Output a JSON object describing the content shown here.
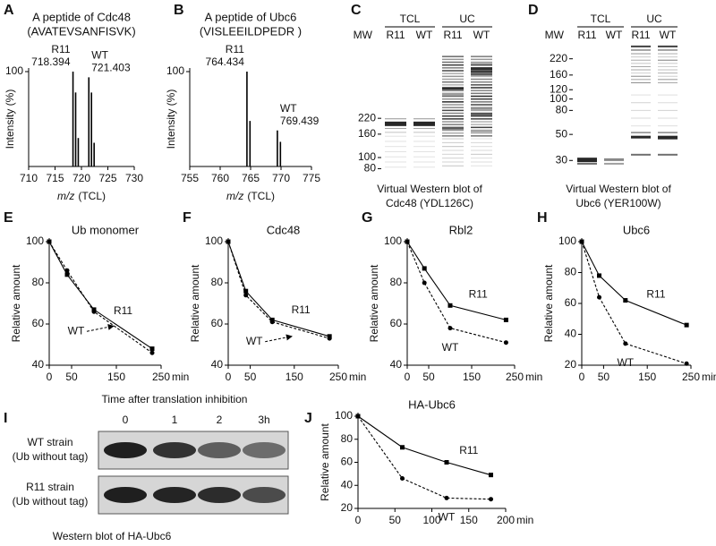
{
  "chart_data": [
    {
      "label": "A",
      "type": "spectrum",
      "title": "A peptide of Cdc48",
      "subtitle": "(AVATEVSANFISVK)",
      "xlabel": "m/z",
      "xunit": "(TCL)",
      "ylabel": "Intensity (%)",
      "xlim": [
        710,
        730
      ],
      "xticks": [
        710,
        715,
        720,
        725,
        730
      ],
      "ylim": [
        0,
        100
      ],
      "yticks": [
        100
      ],
      "series": [
        {
          "name": "R11",
          "peak_label": 718.394,
          "color": "#000000",
          "x": [
            718.4,
            718.9,
            719.4
          ],
          "values": [
            100,
            78,
            30
          ]
        },
        {
          "name": "WT",
          "peak_label": 721.403,
          "color": "#000000",
          "x": [
            721.4,
            721.9,
            722.4
          ],
          "values": [
            94,
            78,
            25
          ]
        }
      ]
    },
    {
      "label": "B",
      "type": "spectrum",
      "title": "A peptide of Ubc6",
      "subtitle": "(VISLEEILDPEDR )",
      "xlabel": "m/z",
      "xunit": "(TCL)",
      "ylabel": "Intensity (%)",
      "xlim": [
        755,
        775
      ],
      "xticks": [
        755,
        760,
        765,
        770,
        775
      ],
      "ylim": [
        0,
        100
      ],
      "yticks": [
        100
      ],
      "series": [
        {
          "name": "R11",
          "peak_label": 764.434,
          "color": "#000000",
          "x": [
            764.4,
            764.9
          ],
          "values": [
            100,
            48
          ]
        },
        {
          "name": "WT",
          "peak_label": 769.439,
          "color": "#000000",
          "x": [
            769.4,
            769.9
          ],
          "values": [
            38,
            26
          ]
        }
      ]
    },
    {
      "label": "C",
      "type": "gel",
      "groups": [
        "TCL",
        "UC"
      ],
      "lanes": [
        "R11",
        "WT",
        "R11",
        "WT"
      ],
      "ylabel": "MW",
      "log": true,
      "ylim": [
        75,
        1000
      ],
      "yticks": [
        220,
        160,
        100,
        80
      ],
      "caption": [
        "Virtual Western blot of",
        "Cdc48 (YDL126C)"
      ]
    },
    {
      "label": "D",
      "type": "gel",
      "groups": [
        "TCL",
        "UC"
      ],
      "lanes": [
        "R11",
        "WT",
        "R11",
        "WT"
      ],
      "ylabel": "MW",
      "log": true,
      "ylim": [
        24,
        300
      ],
      "yticks": [
        220,
        160,
        120,
        100,
        80,
        50,
        30
      ],
      "caption": [
        "Virtual Western blot of",
        "Ubc6 (YER100W)"
      ]
    },
    {
      "label": "E",
      "type": "line",
      "title": "Ub monomer",
      "ylabel": "Relative amount",
      "xunit": "min",
      "xlim": [
        0,
        250
      ],
      "xticks": [
        0,
        50,
        150,
        250
      ],
      "ylim": [
        40,
        100
      ],
      "yticks": [
        40,
        60,
        80,
        100
      ],
      "x": [
        0,
        40,
        100,
        230
      ],
      "series": [
        {
          "name": "R11",
          "color": "#000000",
          "marker": "square",
          "dashed": false,
          "values": [
            100,
            84,
            67,
            48
          ]
        },
        {
          "name": "WT",
          "color": "#000000",
          "marker": "circle",
          "dashed": true,
          "label_arrow": true,
          "values": [
            100,
            86,
            66,
            46
          ]
        }
      ]
    },
    {
      "label": "F",
      "type": "line",
      "title": "Cdc48",
      "ylabel": "Relative amount",
      "xunit": "min",
      "xlim": [
        0,
        250
      ],
      "xticks": [
        0,
        50,
        150,
        250
      ],
      "ylim": [
        40,
        100
      ],
      "yticks": [
        40,
        60,
        80,
        100
      ],
      "x": [
        0,
        40,
        100,
        230
      ],
      "series": [
        {
          "name": "R11",
          "color": "#000000",
          "marker": "square",
          "dashed": false,
          "values": [
            100,
            76,
            62,
            54
          ]
        },
        {
          "name": "WT",
          "color": "#000000",
          "marker": "circle",
          "dashed": true,
          "label_arrow": true,
          "values": [
            100,
            74,
            61,
            53
          ]
        }
      ]
    },
    {
      "label": "G",
      "type": "line",
      "title": "Rbl2",
      "ylabel": "Relative amount",
      "xunit": "min",
      "xlim": [
        0,
        250
      ],
      "xticks": [
        0,
        50,
        150,
        250
      ],
      "ylim": [
        40,
        100
      ],
      "yticks": [
        40,
        60,
        80,
        100
      ],
      "x": [
        0,
        40,
        100,
        230
      ],
      "series": [
        {
          "name": "R11",
          "color": "#000000",
          "marker": "square",
          "dashed": false,
          "values": [
            100,
            87,
            69,
            62
          ]
        },
        {
          "name": "WT",
          "color": "#000000",
          "marker": "circle",
          "dashed": true,
          "values": [
            100,
            80,
            58,
            51
          ]
        }
      ]
    },
    {
      "label": "H",
      "type": "line",
      "title": "Ubc6",
      "ylabel": "Relative amount",
      "xunit": "min",
      "xlim": [
        0,
        250
      ],
      "xticks": [
        0,
        50,
        150,
        250
      ],
      "ylim": [
        20,
        100
      ],
      "yticks": [
        20,
        40,
        60,
        80,
        100
      ],
      "x": [
        0,
        40,
        100,
        240
      ],
      "series": [
        {
          "name": "R11",
          "color": "#000000",
          "marker": "square",
          "dashed": false,
          "values": [
            100,
            78,
            62,
            46
          ]
        },
        {
          "name": "WT",
          "color": "#000000",
          "marker": "circle",
          "dashed": true,
          "values": [
            100,
            64,
            34,
            21
          ]
        }
      ]
    },
    {
      "label": "I",
      "type": "blot",
      "title": "Time after translation inhibition",
      "lanes": [
        "0",
        "1",
        "2",
        "3h"
      ],
      "rows": [
        [
          "WT strain",
          "(Ub without tag)"
        ],
        [
          "R11 strain",
          "(Ub without tag)"
        ]
      ],
      "caption": "Western blot of HA-Ubc6"
    },
    {
      "label": "J",
      "type": "line",
      "title": "HA-Ubc6",
      "ylabel": "Relative amount",
      "xunit": "min",
      "xlim": [
        0,
        200
      ],
      "xticks": [
        0,
        50,
        100,
        150,
        200
      ],
      "ylim": [
        20,
        100
      ],
      "yticks": [
        20,
        40,
        60,
        80,
        100
      ],
      "x": [
        0,
        60,
        120,
        180
      ],
      "series": [
        {
          "name": "R11",
          "color": "#000000",
          "marker": "square",
          "dashed": false,
          "values": [
            100,
            73,
            60,
            49
          ]
        },
        {
          "name": "WT",
          "color": "#000000",
          "marker": "circle",
          "dashed": true,
          "values": [
            100,
            46,
            29,
            28
          ]
        }
      ]
    }
  ]
}
